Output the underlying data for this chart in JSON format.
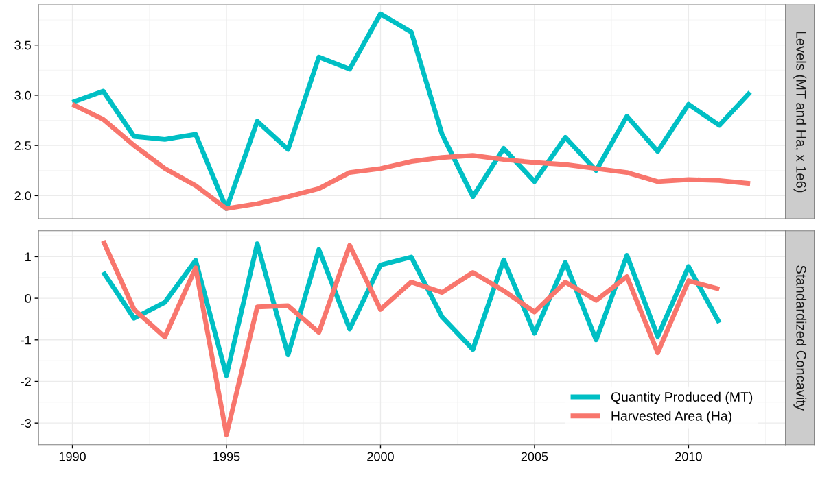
{
  "chart_data": [
    {
      "type": "line",
      "ylabel": "Levels (MT and Ha, x 1e6)",
      "x": [
        1990,
        1991,
        1992,
        1993,
        1994,
        1995,
        1996,
        1997,
        1998,
        1999,
        2000,
        2001,
        2002,
        2003,
        2004,
        2005,
        2006,
        2007,
        2008,
        2009,
        2010,
        2011,
        2012
      ],
      "series": [
        {
          "color": "#00bfc4",
          "values": [
            2.93,
            3.04,
            2.59,
            2.56,
            2.61,
            1.87,
            2.74,
            2.46,
            3.38,
            3.26,
            3.81,
            3.63,
            2.61,
            1.99,
            2.47,
            2.14,
            2.58,
            2.25,
            2.79,
            2.44,
            2.91,
            2.7,
            3.03
          ]
        },
        {
          "color": "#f8766d",
          "values": [
            2.91,
            2.76,
            2.5,
            2.27,
            2.1,
            1.87,
            1.92,
            1.99,
            2.07,
            2.23,
            2.27,
            2.34,
            2.38,
            2.4,
            2.36,
            2.33,
            2.31,
            2.27,
            2.23,
            2.14,
            2.16,
            2.15,
            2.12
          ]
        }
      ],
      "xlim": [
        1988.9,
        2013.15
      ],
      "xticks": [
        1990,
        1995,
        2000,
        2005,
        2010
      ],
      "ylim": [
        1.77,
        3.9
      ],
      "yticks": [
        {
          "value": 2,
          "label": "2.0"
        },
        2.5,
        {
          "value": 3,
          "label": "3.0"
        },
        3.5
      ],
      "grid": true,
      "tick_labels": "y",
      "legend": false,
      "line_style": "solid",
      "marker": "none"
    },
    {
      "type": "line",
      "ylabel": "Standardized Concavity",
      "x": [
        1991,
        1992,
        1993,
        1994,
        1995,
        1996,
        1997,
        1998,
        1999,
        2000,
        2001,
        2002,
        2003,
        2004,
        2005,
        2006,
        2007,
        2008,
        2009,
        2010,
        2011
      ],
      "series": [
        {
          "name": "Quantity Produced (MT)",
          "color": "#00bfc4",
          "values": [
            0.63,
            -0.48,
            -0.1,
            0.91,
            -1.86,
            1.31,
            -1.36,
            1.17,
            -0.74,
            0.8,
            0.99,
            -0.45,
            -1.23,
            0.92,
            -0.84,
            0.86,
            -1.0,
            1.03,
            -0.92,
            0.76,
            -0.59
          ]
        },
        {
          "name": "Harvested Area (Ha)",
          "color": "#f8766d",
          "values": [
            1.38,
            -0.27,
            -0.93,
            0.73,
            -3.28,
            -0.21,
            -0.18,
            -0.82,
            1.27,
            -0.27,
            0.39,
            0.14,
            0.62,
            0.18,
            -0.33,
            0.39,
            -0.05,
            0.52,
            -1.31,
            0.42,
            0.22
          ]
        }
      ],
      "xlim": [
        1988.9,
        2013.15
      ],
      "xticks": [
        1990,
        1995,
        2000,
        2005,
        2010
      ],
      "ylim": [
        -3.52,
        1.62
      ],
      "yticks": [
        -3,
        -2,
        -1,
        0,
        1
      ],
      "grid": true,
      "legend": "bottom right",
      "line_style": "solid",
      "marker": "none"
    }
  ]
}
